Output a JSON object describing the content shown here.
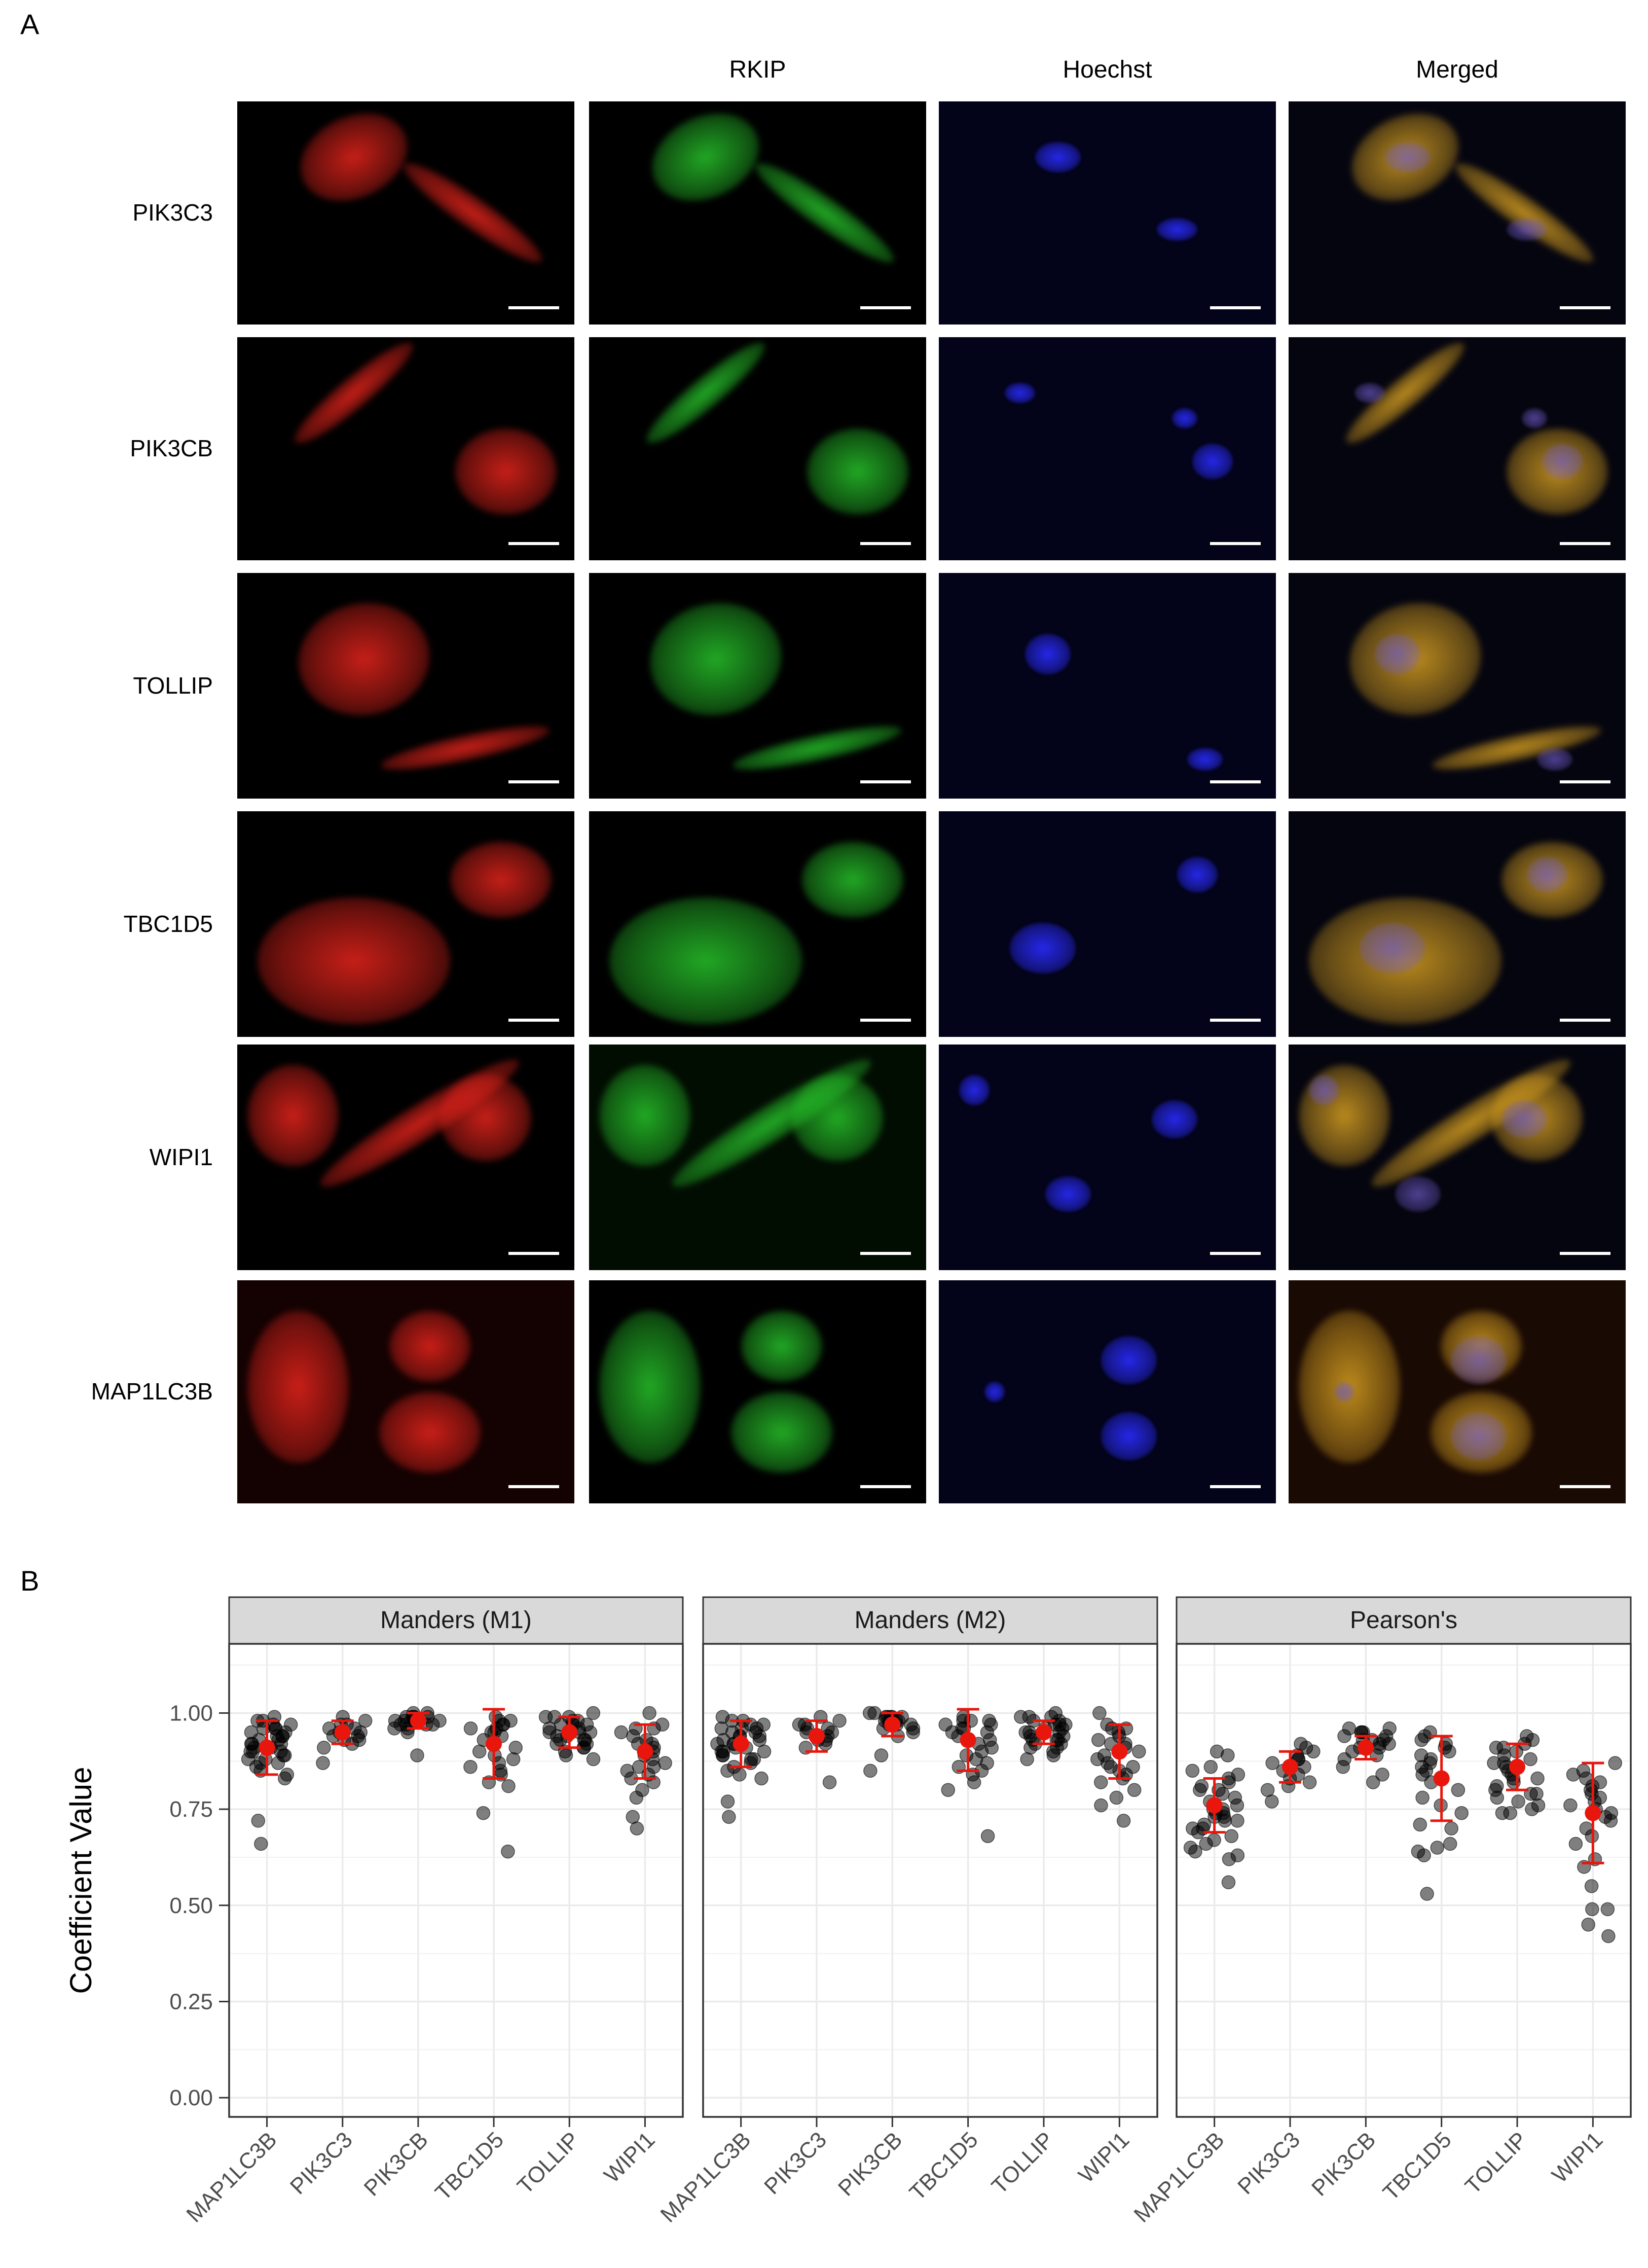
{
  "panel_a": {
    "letter": "A",
    "columns": [
      "",
      "RKIP",
      "Hoechst",
      "Merged"
    ],
    "rows": [
      "PIK3C3",
      "PIK3CB",
      "TOLLIP",
      "TBC1D5",
      "WIPI1",
      "MAP1LC3B"
    ],
    "channel_colors": {
      "red": "#e8241c",
      "green": "#27c42a",
      "blue": "#2a2cff",
      "merged": "#d8a020"
    }
  },
  "panel_b": {
    "letter": "B"
  },
  "chart_data": {
    "type": "scatter",
    "ylabel": "Coefficient Value",
    "ylim": [
      -0.05,
      1.18
    ],
    "yticks": [
      "0.00",
      "0.25",
      "0.50",
      "0.75",
      "1.00"
    ],
    "categories": [
      "MAP1LC3B",
      "PIK3C3",
      "PIK3CB",
      "TBC1D5",
      "TOLLIP",
      "WIPI1"
    ],
    "colors": {
      "point": "#000000",
      "summary": "#e8160c"
    },
    "facets": [
      {
        "title": "Manders (M1)",
        "mean": [
          0.91,
          0.95,
          0.98,
          0.92,
          0.95,
          0.9
        ],
        "sd": [
          0.07,
          0.03,
          0.02,
          0.09,
          0.04,
          0.07
        ],
        "points": [
          [
            0.99,
            0.98,
            0.97,
            0.97,
            0.96,
            0.96,
            0.95,
            0.95,
            0.94,
            0.94,
            0.93,
            0.93,
            0.92,
            0.92,
            0.91,
            0.91,
            0.9,
            0.9,
            0.89,
            0.89,
            0.88,
            0.88,
            0.87,
            0.87,
            0.86,
            0.85,
            0.84,
            0.83,
            0.98,
            0.96,
            0.94,
            0.92,
            0.9,
            0.72,
            0.66
          ],
          [
            0.99,
            0.98,
            0.97,
            0.96,
            0.96,
            0.95,
            0.95,
            0.94,
            0.94,
            0.93,
            0.93,
            0.92,
            0.91,
            0.97,
            0.87
          ],
          [
            1.0,
            1.0,
            0.99,
            0.99,
            0.99,
            0.99,
            0.98,
            0.98,
            0.98,
            0.98,
            0.97,
            0.97,
            0.97,
            0.96,
            0.96,
            0.95,
            0.99,
            0.98,
            0.97,
            0.89
          ],
          [
            0.99,
            0.98,
            0.98,
            0.97,
            0.96,
            0.96,
            0.95,
            0.95,
            0.94,
            0.93,
            0.92,
            0.91,
            0.9,
            0.89,
            0.88,
            0.87,
            0.86,
            0.85,
            0.84,
            0.82,
            0.81,
            0.97,
            0.74,
            0.64
          ],
          [
            1.0,
            0.99,
            0.99,
            0.98,
            0.98,
            0.97,
            0.97,
            0.96,
            0.96,
            0.95,
            0.95,
            0.94,
            0.94,
            0.93,
            0.93,
            0.92,
            0.92,
            0.91,
            0.9,
            0.89,
            0.99,
            0.97,
            0.95,
            0.93,
            0.91,
            0.88
          ],
          [
            1.0,
            0.97,
            0.96,
            0.95,
            0.94,
            0.93,
            0.92,
            0.91,
            0.9,
            0.89,
            0.88,
            0.87,
            0.86,
            0.85,
            0.84,
            0.83,
            0.82,
            0.8,
            0.78,
            0.96,
            0.92,
            0.86,
            0.73,
            0.7
          ]
        ]
      },
      {
        "title": "Manders (M2)",
        "mean": [
          0.92,
          0.94,
          0.97,
          0.93,
          0.95,
          0.9
        ],
        "sd": [
          0.06,
          0.04,
          0.03,
          0.08,
          0.03,
          0.07
        ],
        "points": [
          [
            0.99,
            0.98,
            0.97,
            0.97,
            0.96,
            0.96,
            0.95,
            0.95,
            0.94,
            0.94,
            0.93,
            0.93,
            0.92,
            0.92,
            0.91,
            0.91,
            0.9,
            0.9,
            0.89,
            0.89,
            0.88,
            0.88,
            0.87,
            0.86,
            0.85,
            0.84,
            0.83,
            0.98,
            0.96,
            0.94,
            0.92,
            0.9,
            0.77,
            0.73
          ],
          [
            0.99,
            0.98,
            0.97,
            0.96,
            0.96,
            0.95,
            0.95,
            0.94,
            0.94,
            0.93,
            0.93,
            0.92,
            0.91,
            0.97,
            0.82
          ],
          [
            1.0,
            1.0,
            0.99,
            0.99,
            0.99,
            0.99,
            0.98,
            0.98,
            0.98,
            0.98,
            0.97,
            0.97,
            0.96,
            0.96,
            0.95,
            0.94,
            0.99,
            0.97,
            0.89,
            0.85
          ],
          [
            0.99,
            0.98,
            0.98,
            0.97,
            0.97,
            0.96,
            0.96,
            0.95,
            0.95,
            0.94,
            0.93,
            0.92,
            0.91,
            0.9,
            0.89,
            0.88,
            0.87,
            0.86,
            0.85,
            0.84,
            0.82,
            0.98,
            0.8,
            0.68
          ],
          [
            1.0,
            0.99,
            0.99,
            0.98,
            0.98,
            0.97,
            0.97,
            0.96,
            0.96,
            0.95,
            0.95,
            0.94,
            0.94,
            0.93,
            0.93,
            0.92,
            0.92,
            0.91,
            0.9,
            0.89,
            0.99,
            0.97,
            0.95,
            0.93,
            0.91,
            0.88
          ],
          [
            1.0,
            0.97,
            0.96,
            0.95,
            0.94,
            0.93,
            0.92,
            0.91,
            0.9,
            0.89,
            0.88,
            0.87,
            0.86,
            0.85,
            0.84,
            0.83,
            0.82,
            0.8,
            0.78,
            0.96,
            0.92,
            0.86,
            0.76,
            0.72
          ]
        ]
      },
      {
        "title": "Pearson's",
        "mean": [
          0.76,
          0.86,
          0.91,
          0.83,
          0.86,
          0.74
        ],
        "sd": [
          0.07,
          0.04,
          0.03,
          0.11,
          0.06,
          0.13
        ],
        "points": [
          [
            0.9,
            0.89,
            0.86,
            0.85,
            0.84,
            0.83,
            0.82,
            0.81,
            0.8,
            0.79,
            0.78,
            0.77,
            0.76,
            0.76,
            0.75,
            0.75,
            0.74,
            0.74,
            0.73,
            0.73,
            0.72,
            0.71,
            0.7,
            0.7,
            0.69,
            0.68,
            0.67,
            0.66,
            0.65,
            0.64,
            0.63,
            0.62,
            0.8,
            0.72,
            0.56
          ],
          [
            0.92,
            0.91,
            0.9,
            0.89,
            0.88,
            0.87,
            0.86,
            0.85,
            0.84,
            0.83,
            0.82,
            0.81,
            0.8,
            0.88,
            0.77
          ],
          [
            0.96,
            0.96,
            0.95,
            0.95,
            0.94,
            0.94,
            0.93,
            0.93,
            0.92,
            0.92,
            0.91,
            0.91,
            0.9,
            0.89,
            0.88,
            0.86,
            0.84,
            0.95,
            0.93,
            0.82
          ],
          [
            0.95,
            0.94,
            0.93,
            0.92,
            0.91,
            0.9,
            0.89,
            0.88,
            0.87,
            0.86,
            0.85,
            0.84,
            0.82,
            0.8,
            0.78,
            0.76,
            0.74,
            0.71,
            0.7,
            0.66,
            0.65,
            0.64,
            0.63,
            0.53
          ],
          [
            0.94,
            0.93,
            0.92,
            0.91,
            0.9,
            0.89,
            0.88,
            0.87,
            0.86,
            0.85,
            0.84,
            0.83,
            0.82,
            0.81,
            0.8,
            0.79,
            0.78,
            0.77,
            0.76,
            0.75,
            0.74,
            0.91,
            0.87,
            0.83,
            0.79,
            0.74
          ],
          [
            0.87,
            0.85,
            0.84,
            0.83,
            0.82,
            0.81,
            0.8,
            0.79,
            0.78,
            0.77,
            0.76,
            0.75,
            0.74,
            0.73,
            0.72,
            0.7,
            0.68,
            0.66,
            0.62,
            0.6,
            0.55,
            0.49,
            0.49,
            0.45,
            0.42
          ]
        ]
      }
    ]
  }
}
